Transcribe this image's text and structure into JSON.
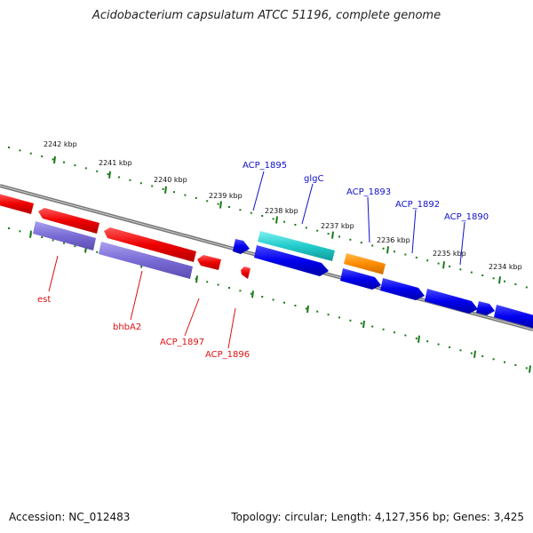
{
  "title": "Acidobacterium capsulatum ATCC 51196, complete genome",
  "footer": {
    "accession": "Accession: NC_012483",
    "summary": "Topology: circular; Length: 4,127,356 bp; Genes: 3,425"
  },
  "colors": {
    "backbone": "#808080",
    "tick": "#1a7a1a",
    "forward_label": "#1010cc",
    "reverse_label": "#dd1111"
  },
  "ticks": [
    {
      "label": "2242 kbp"
    },
    {
      "label": "2241 kbp"
    },
    {
      "label": "2240 kbp"
    },
    {
      "label": "2239 kbp"
    },
    {
      "label": "2238 kbp"
    },
    {
      "label": "2237 kbp"
    },
    {
      "label": "2236 kbp"
    },
    {
      "label": "2235 kbp"
    },
    {
      "label": "2234 kbp"
    }
  ],
  "gene_labels": [
    {
      "name": "ACP_1895",
      "strand": "forward"
    },
    {
      "name": "glgC",
      "strand": "forward"
    },
    {
      "name": "ACP_1893",
      "strand": "forward"
    },
    {
      "name": "ACP_1892",
      "strand": "forward"
    },
    {
      "name": "ACP_1890",
      "strand": "forward"
    },
    {
      "name": "est",
      "strand": "reverse"
    },
    {
      "name": "bhbA2",
      "strand": "reverse"
    },
    {
      "name": "ACP_1897",
      "strand": "reverse"
    },
    {
      "name": "ACP_1896",
      "strand": "reverse"
    }
  ]
}
